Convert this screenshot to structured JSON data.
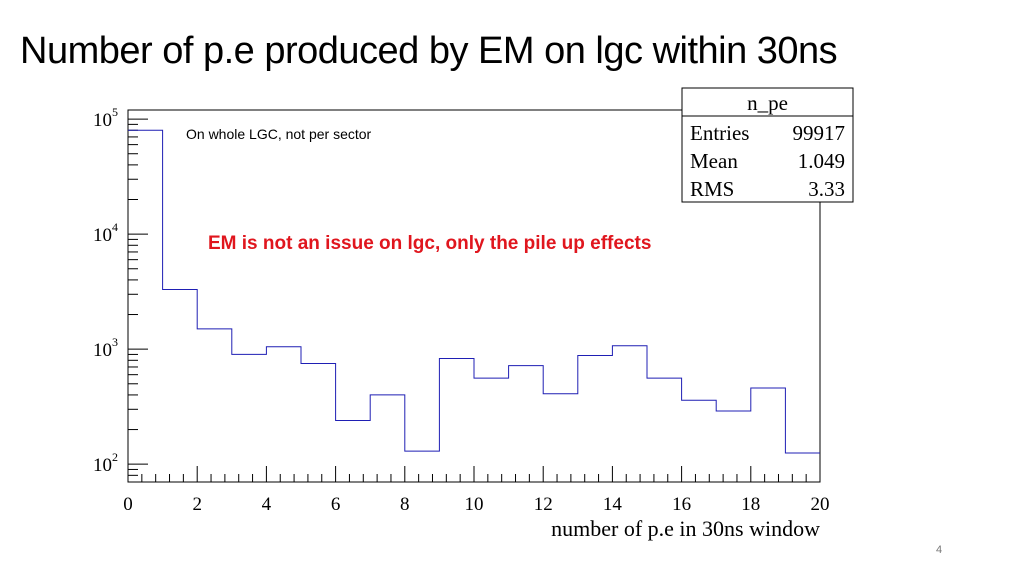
{
  "slide": {
    "title": "Number of p.e produced by EM on lgc within 30ns",
    "page_number": "4"
  },
  "annotations": {
    "note": "On whole LGC, not per sector",
    "emphasis": "EM is not an issue on lgc, only the pile up effects"
  },
  "stats_box": {
    "name": "n_pe",
    "rows": [
      {
        "label": "Entries",
        "value": "99917"
      },
      {
        "label": "Mean",
        "value": "1.049"
      },
      {
        "label": "RMS",
        "value": "3.33"
      }
    ]
  },
  "colors": {
    "histogram_line": "#1f1fb4",
    "emphasis_text": "#e0161e"
  },
  "chart_data": {
    "type": "bar",
    "style": "step-histogram",
    "xlabel": "number of p.e in 30ns window",
    "ylabel": "",
    "xlim": [
      0,
      20
    ],
    "ylim": [
      70,
      120000
    ],
    "ylog": true,
    "grid": false,
    "bin_edges": [
      0,
      1,
      2,
      3,
      4,
      5,
      6,
      7,
      8,
      9,
      10,
      11,
      12,
      13,
      14,
      15,
      16,
      17,
      18,
      19,
      20
    ],
    "values": [
      80000,
      3300,
      1500,
      900,
      1050,
      750,
      240,
      400,
      130,
      830,
      560,
      720,
      410,
      880,
      1070,
      560,
      360,
      290,
      460,
      125
    ],
    "x_ticks": [
      0,
      2,
      4,
      6,
      8,
      10,
      12,
      14,
      16,
      18,
      20
    ],
    "y_ticks": [
      {
        "value": 100,
        "base": "10",
        "exp": "2"
      },
      {
        "value": 1000,
        "base": "10",
        "exp": "3"
      },
      {
        "value": 10000,
        "base": "10",
        "exp": "4"
      },
      {
        "value": 100000,
        "base": "10",
        "exp": "5"
      }
    ]
  }
}
